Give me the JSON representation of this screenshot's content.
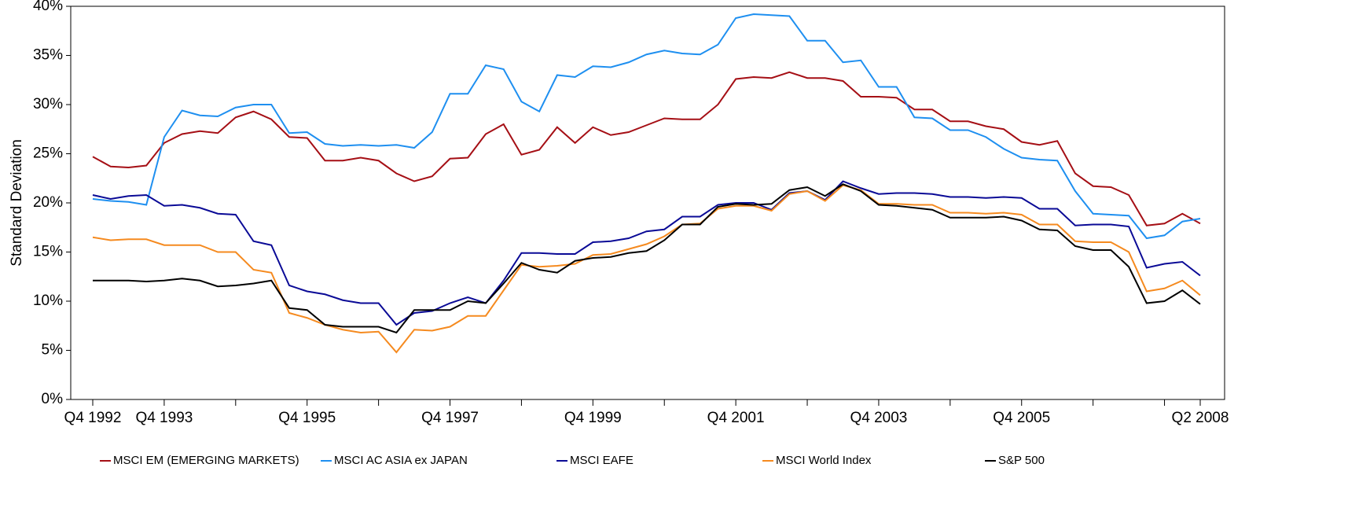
{
  "chart_data": {
    "type": "line",
    "y_label": "Standard Deviation",
    "categories": [
      "Q4 1992",
      null,
      null,
      null,
      "Q4 1993",
      null,
      null,
      null,
      null,
      null,
      null,
      null,
      "Q4 1995",
      null,
      null,
      null,
      null,
      null,
      null,
      null,
      "Q4 1997",
      null,
      null,
      null,
      null,
      null,
      null,
      null,
      "Q4 1999",
      null,
      null,
      null,
      null,
      null,
      null,
      null,
      "Q4 2001",
      null,
      null,
      null,
      null,
      null,
      null,
      null,
      "Q4 2003",
      null,
      null,
      null,
      null,
      null,
      null,
      null,
      "Q4 2005",
      null,
      null,
      null,
      null,
      null,
      null,
      null,
      null,
      null,
      "Q2 2008"
    ],
    "series": [
      {
        "name": "MSCI EM (EMERGING MARKETS)",
        "color": "#a50f15",
        "values": [
          24.7,
          23.7,
          23.6,
          23.8,
          26.1,
          27.0,
          27.3,
          27.1,
          28.7,
          29.3,
          28.5,
          26.7,
          26.6,
          24.3,
          24.3,
          24.6,
          24.3,
          23.0,
          22.2,
          22.7,
          24.5,
          24.6,
          27.0,
          28.0,
          24.9,
          25.4,
          27.7,
          26.1,
          27.7,
          26.9,
          27.2,
          27.9,
          28.6,
          28.5,
          28.5,
          30.0,
          32.6,
          32.8,
          32.7,
          33.3,
          32.7,
          32.7,
          32.4,
          30.8,
          30.8,
          30.7,
          29.5,
          29.5,
          28.3,
          28.3,
          27.8,
          27.5,
          26.2,
          25.9,
          26.3,
          23.0,
          21.7,
          21.6,
          20.8,
          17.7,
          17.9,
          18.9,
          17.9
        ]
      },
      {
        "name": "MSCI AC ASIA ex JAPAN",
        "color": "#1e8ff0",
        "values": [
          20.4,
          20.2,
          20.1,
          19.8,
          26.7,
          29.4,
          28.9,
          28.8,
          29.7,
          30.0,
          30.0,
          27.1,
          27.2,
          26.0,
          25.8,
          25.9,
          25.8,
          25.9,
          25.6,
          27.2,
          31.1,
          31.1,
          34.0,
          33.6,
          30.3,
          29.3,
          33.0,
          32.8,
          33.9,
          33.8,
          34.3,
          35.1,
          35.5,
          35.2,
          35.1,
          36.1,
          38.8,
          39.2,
          39.1,
          39.0,
          36.5,
          36.5,
          34.3,
          34.5,
          31.8,
          31.8,
          28.7,
          28.6,
          27.4,
          27.4,
          26.7,
          25.5,
          24.6,
          24.4,
          24.3,
          21.2,
          18.9,
          18.8,
          18.7,
          16.4,
          16.7,
          18.1,
          18.4
        ]
      },
      {
        "name": "MSCI EAFE",
        "color": "#0a0a96",
        "values": [
          20.8,
          20.4,
          20.7,
          20.8,
          19.7,
          19.8,
          19.5,
          18.9,
          18.8,
          16.1,
          15.7,
          11.6,
          11.0,
          10.7,
          10.1,
          9.8,
          9.8,
          7.6,
          8.8,
          9.0,
          9.8,
          10.4,
          9.8,
          12.1,
          14.9,
          14.9,
          14.8,
          14.8,
          16.0,
          16.1,
          16.4,
          17.1,
          17.3,
          18.6,
          18.6,
          19.8,
          20.0,
          20.0,
          19.3,
          21.0,
          21.2,
          20.3,
          22.2,
          21.5,
          20.9,
          21.0,
          21.0,
          20.9,
          20.6,
          20.6,
          20.5,
          20.6,
          20.5,
          19.4,
          19.4,
          17.7,
          17.8,
          17.8,
          17.6,
          13.4,
          13.8,
          14.0,
          12.6
        ]
      },
      {
        "name": "MSCI World Index",
        "color": "#f58a1f",
        "values": [
          16.5,
          16.2,
          16.3,
          16.3,
          15.7,
          15.7,
          15.7,
          15.0,
          15.0,
          13.2,
          12.9,
          8.8,
          8.3,
          7.6,
          7.1,
          6.8,
          6.9,
          4.8,
          7.1,
          7.0,
          7.4,
          8.5,
          8.5,
          11.1,
          13.7,
          13.5,
          13.6,
          13.8,
          14.7,
          14.8,
          15.3,
          15.8,
          16.6,
          17.8,
          17.9,
          19.4,
          19.7,
          19.7,
          19.2,
          20.9,
          21.2,
          20.2,
          21.8,
          21.3,
          19.9,
          19.9,
          19.8,
          19.8,
          19.0,
          19.0,
          18.9,
          19.0,
          18.8,
          17.8,
          17.8,
          16.1,
          16.0,
          16.0,
          15.0,
          11.0,
          11.3,
          12.1,
          10.6
        ]
      },
      {
        "name": "S&P 500",
        "color": "#000000",
        "values": [
          12.1,
          12.1,
          12.1,
          12.0,
          12.1,
          12.3,
          12.1,
          11.5,
          11.6,
          11.8,
          12.1,
          9.3,
          9.1,
          7.6,
          7.4,
          7.4,
          7.4,
          6.8,
          9.1,
          9.1,
          9.1,
          10.0,
          9.8,
          11.8,
          13.9,
          13.2,
          12.9,
          14.1,
          14.4,
          14.5,
          14.9,
          15.1,
          16.2,
          17.8,
          17.8,
          19.6,
          19.9,
          19.8,
          19.9,
          21.3,
          21.6,
          20.7,
          21.9,
          21.2,
          19.8,
          19.7,
          19.5,
          19.3,
          18.5,
          18.5,
          18.5,
          18.6,
          18.2,
          17.3,
          17.2,
          15.6,
          15.2,
          15.2,
          13.5,
          9.8,
          10.0,
          11.1,
          9.7
        ]
      }
    ],
    "ylim": [
      0,
      40
    ],
    "yticks": [
      {
        "value": 0,
        "label": "0%"
      },
      {
        "value": 5,
        "label": "5%"
      },
      {
        "value": 10,
        "label": "10%"
      },
      {
        "value": 15,
        "label": "15%"
      },
      {
        "value": 20,
        "label": "20%"
      },
      {
        "value": 25,
        "label": "25%"
      },
      {
        "value": 30,
        "label": "30%"
      },
      {
        "value": 35,
        "label": "35%"
      },
      {
        "value": 40,
        "label": "40%"
      }
    ],
    "grid": false,
    "legend": "bottom"
  }
}
